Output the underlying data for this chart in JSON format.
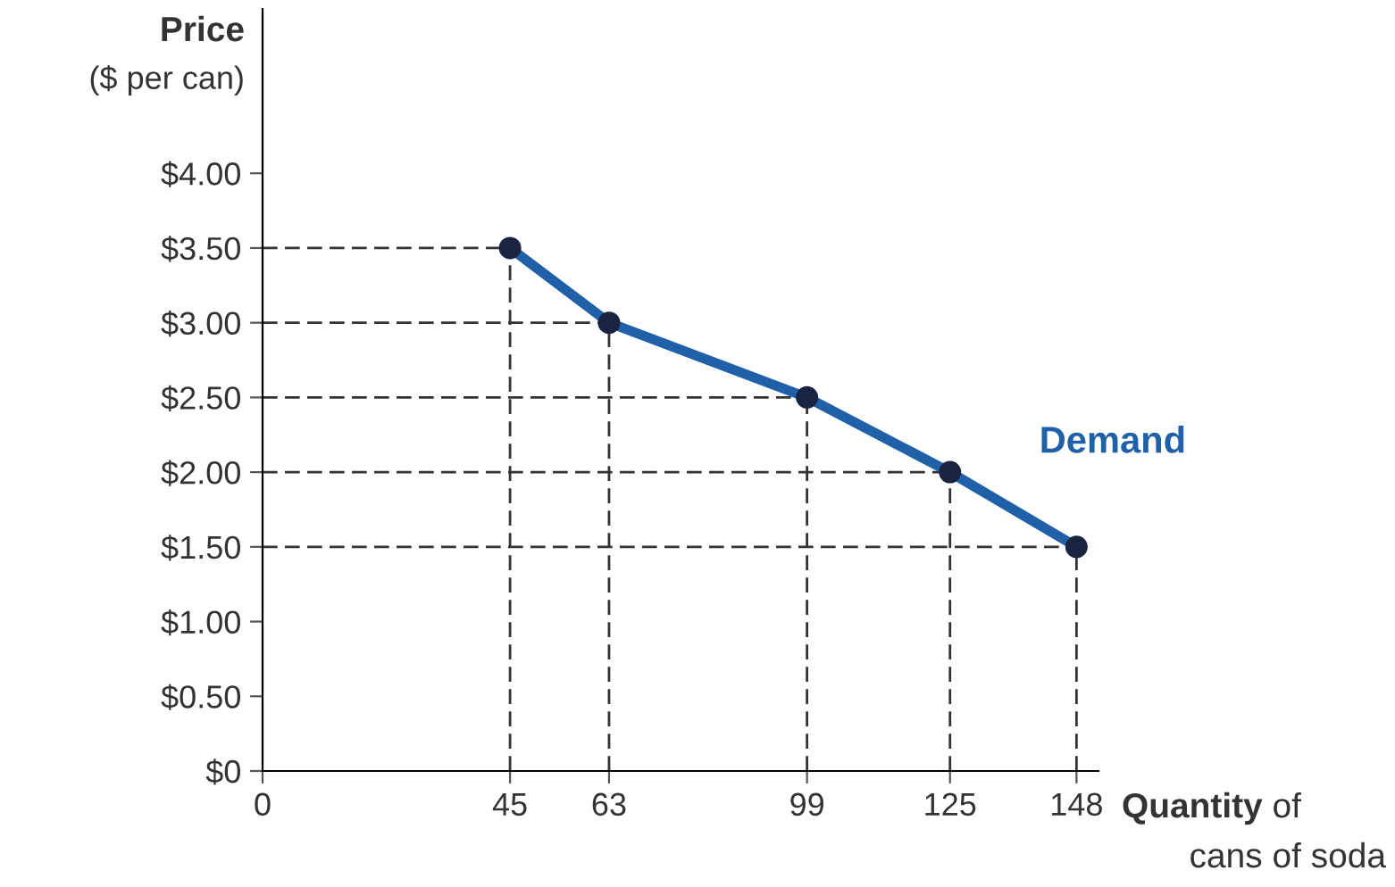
{
  "chart_data": {
    "type": "line",
    "xlabel": "Quantity of cans of soda",
    "ylabel": "Price ($ per can)",
    "x": [
      45,
      63,
      99,
      125,
      148
    ],
    "series": [
      {
        "name": "Demand",
        "color": "#2060a8",
        "values": [
          3.5,
          3.0,
          2.5,
          2.0,
          1.5
        ]
      },
      {
        "color": "#333333",
        "line_style": "dashed",
        "marker": "none",
        "x": [
          0,
          45
        ],
        "values": [
          3.5,
          3.5
        ]
      },
      {
        "color": "#333333",
        "line_style": "dashed",
        "marker": "none",
        "x": [
          45,
          45
        ],
        "values": [
          0,
          3.5
        ]
      },
      {
        "color": "#333333",
        "line_style": "dashed",
        "marker": "none",
        "x": [
          0,
          63
        ],
        "values": [
          3.0,
          3.0
        ]
      },
      {
        "color": "#333333",
        "line_style": "dashed",
        "marker": "none",
        "x": [
          63,
          63
        ],
        "values": [
          0,
          3.0
        ]
      },
      {
        "color": "#333333",
        "line_style": "dashed",
        "marker": "none",
        "x": [
          0,
          99
        ],
        "values": [
          2.5,
          2.5
        ]
      },
      {
        "color": "#333333",
        "line_style": "dashed",
        "marker": "none",
        "x": [
          99,
          99
        ],
        "values": [
          0,
          2.5
        ]
      },
      {
        "color": "#333333",
        "line_style": "dashed",
        "marker": "none",
        "x": [
          0,
          125
        ],
        "values": [
          2.0,
          2.0
        ]
      },
      {
        "color": "#333333",
        "line_style": "dashed",
        "marker": "none",
        "x": [
          125,
          125
        ],
        "values": [
          0,
          2.0
        ]
      },
      {
        "color": "#333333",
        "line_style": "dashed",
        "marker": "none",
        "x": [
          0,
          148
        ],
        "values": [
          1.5,
          1.5
        ]
      },
      {
        "color": "#333333",
        "line_style": "dashed",
        "marker": "none",
        "x": [
          148,
          148
        ],
        "values": [
          0,
          1.5
        ]
      }
    ],
    "marker": "circle",
    "line_style": "solid",
    "xlim": [
      0,
      152
    ],
    "xticks": [
      0,
      45,
      63,
      99,
      125,
      148
    ],
    "ylim": [
      0,
      5.1
    ],
    "yticks": [
      {
        "value": 0,
        "label": "$0"
      },
      {
        "value": 0.5,
        "label": "$0.50"
      },
      {
        "value": 1.0,
        "label": "$1.00"
      },
      {
        "value": 1.5,
        "label": "$1.50"
      },
      {
        "value": 2.0,
        "label": "$2.00"
      },
      {
        "value": 2.5,
        "label": "$2.50"
      },
      {
        "value": 3.0,
        "label": "$3.00"
      },
      {
        "value": 3.5,
        "label": "$3.50"
      },
      {
        "value": 4.0,
        "label": "$4.00"
      }
    ],
    "legend": false
  }
}
